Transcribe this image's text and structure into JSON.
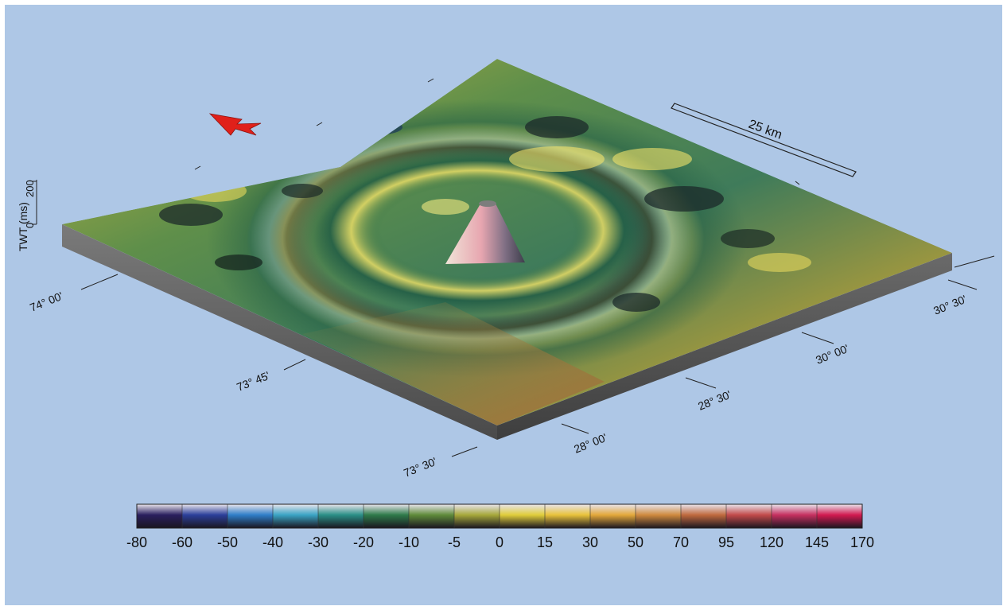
{
  "terrain": {
    "y_axis_label": "TWT (ms)",
    "y_ticks": [
      "200",
      "0"
    ],
    "lon_labels": [
      "74° 00'",
      "73° 45'",
      "73° 30'"
    ],
    "lat_labels": [
      "28° 00'",
      "28° 30'",
      "30° 00'",
      "30° 30'"
    ],
    "scale_bar_label": "25 km",
    "north_arrow_icon": "north-arrow-icon",
    "colors": {
      "background": "#aec7e6",
      "slab_side": "#6b6b6b",
      "arrow": "#e0201a"
    }
  },
  "colorbar": {
    "labels": [
      "-80",
      "-60",
      "-50",
      "-40",
      "-30",
      "-20",
      "-10",
      "-5",
      "0",
      "15",
      "30",
      "50",
      "70",
      "95",
      "120",
      "145",
      "170"
    ],
    "colors": [
      "#2a1f5e",
      "#2b3f9a",
      "#2f7ec8",
      "#3aa4c4",
      "#2a8f86",
      "#2e7a4a",
      "#5f8b3a",
      "#a6a83a",
      "#e0cd3a",
      "#e9c23a",
      "#e3a83a",
      "#cf8a3e",
      "#c06a3e",
      "#c24a4a",
      "#c63060",
      "#d21a50"
    ]
  }
}
